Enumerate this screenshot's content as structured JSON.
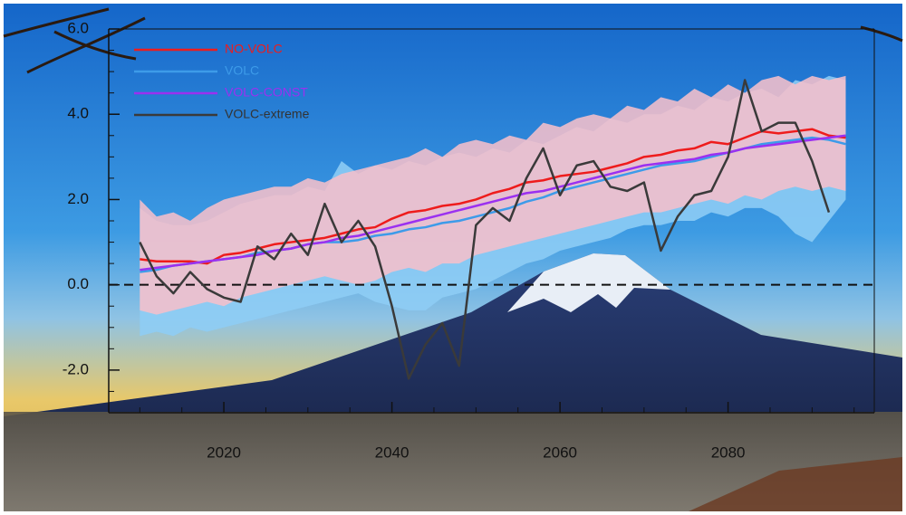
{
  "chart_data": {
    "type": "line",
    "x": [
      2010,
      2012,
      2014,
      2016,
      2018,
      2020,
      2022,
      2024,
      2026,
      2028,
      2030,
      2032,
      2034,
      2036,
      2038,
      2040,
      2042,
      2044,
      2046,
      2048,
      2050,
      2052,
      2054,
      2056,
      2058,
      2060,
      2062,
      2064,
      2066,
      2068,
      2070,
      2072,
      2074,
      2076,
      2078,
      2080,
      2082,
      2084,
      2086,
      2088,
      2090,
      2092,
      2094
    ],
    "series": [
      {
        "name": "NO-VOLC",
        "color": "#ee1c1c",
        "values": [
          0.6,
          0.55,
          0.55,
          0.55,
          0.5,
          0.7,
          0.75,
          0.85,
          0.95,
          1.0,
          1.05,
          1.1,
          1.2,
          1.3,
          1.35,
          1.55,
          1.7,
          1.75,
          1.85,
          1.9,
          2.0,
          2.15,
          2.25,
          2.4,
          2.45,
          2.55,
          2.6,
          2.65,
          2.75,
          2.85,
          3.0,
          3.05,
          3.15,
          3.2,
          3.35,
          3.3,
          3.45,
          3.6,
          3.55,
          3.6,
          3.65,
          3.5,
          3.45
        ]
      },
      {
        "name": "VOLC",
        "color": "#3d9be9",
        "values": [
          0.3,
          0.35,
          0.45,
          0.5,
          0.55,
          0.6,
          0.65,
          0.75,
          0.8,
          0.85,
          0.95,
          1.0,
          1.0,
          1.05,
          1.15,
          1.2,
          1.3,
          1.35,
          1.45,
          1.5,
          1.6,
          1.7,
          1.8,
          1.95,
          2.05,
          2.2,
          2.3,
          2.4,
          2.5,
          2.6,
          2.7,
          2.8,
          2.85,
          2.9,
          3.0,
          3.1,
          3.2,
          3.3,
          3.35,
          3.4,
          3.45,
          3.4,
          3.3
        ]
      },
      {
        "name": "VOLC-CONST",
        "color": "#9b30f0",
        "values": [
          0.35,
          0.4,
          0.45,
          0.5,
          0.55,
          0.6,
          0.65,
          0.7,
          0.8,
          0.85,
          0.95,
          1.0,
          1.1,
          1.15,
          1.25,
          1.35,
          1.45,
          1.55,
          1.65,
          1.75,
          1.85,
          1.95,
          2.05,
          2.15,
          2.2,
          2.3,
          2.4,
          2.5,
          2.6,
          2.7,
          2.8,
          2.85,
          2.9,
          2.95,
          3.05,
          3.1,
          3.2,
          3.25,
          3.3,
          3.35,
          3.4,
          3.45,
          3.5
        ]
      },
      {
        "name": "VOLC-extreme",
        "color": "#3a3a3a",
        "values": [
          1.0,
          0.2,
          -0.2,
          0.3,
          -0.1,
          -0.3,
          -0.4,
          0.9,
          0.6,
          1.2,
          0.7,
          1.9,
          1.0,
          1.5,
          0.9,
          -0.5,
          -2.2,
          -1.4,
          -0.9,
          -1.9,
          1.4,
          1.8,
          1.5,
          2.5,
          3.2,
          2.1,
          2.8,
          2.9,
          2.3,
          2.2,
          2.4,
          0.8,
          1.6,
          2.1,
          2.2,
          3.0,
          4.8,
          3.6,
          3.8,
          3.8,
          2.9,
          1.7,
          null
        ]
      }
    ],
    "bands": [
      {
        "color": "#8ecdf5",
        "upper": [
          1.8,
          1.5,
          1.4,
          1.4,
          1.5,
          1.7,
          1.9,
          2.0,
          2.1,
          2.1,
          2.3,
          2.2,
          2.9,
          2.6,
          2.8,
          2.7,
          2.9,
          2.8,
          3.0,
          3.1,
          3.0,
          3.2,
          3.1,
          3.4,
          3.3,
          3.5,
          3.7,
          3.6,
          3.9,
          3.8,
          4.0,
          4.0,
          4.2,
          4.1,
          4.4,
          4.3,
          4.5,
          4.6,
          4.4,
          4.8,
          4.7,
          4.9,
          4.8
        ],
        "lower": [
          -1.2,
          -1.1,
          -1.2,
          -1.0,
          -1.1,
          -1.0,
          -0.9,
          -0.8,
          -0.7,
          -0.6,
          -0.5,
          -0.4,
          -0.3,
          -0.2,
          -0.4,
          -0.5,
          -0.6,
          -0.6,
          -0.3,
          -0.2,
          -0.1,
          0.1,
          0.3,
          0.5,
          0.6,
          0.8,
          0.9,
          1.0,
          1.1,
          1.3,
          1.4,
          1.4,
          1.5,
          1.5,
          1.7,
          1.6,
          1.8,
          1.8,
          1.6,
          1.2,
          1.0,
          1.5,
          2.0
        ]
      },
      {
        "color": "#f5bfcb",
        "upper": [
          2.0,
          1.6,
          1.7,
          1.5,
          1.8,
          2.0,
          2.1,
          2.2,
          2.3,
          2.3,
          2.5,
          2.4,
          2.6,
          2.7,
          2.8,
          2.9,
          3.0,
          3.2,
          3.0,
          3.3,
          3.4,
          3.3,
          3.5,
          3.4,
          3.8,
          3.7,
          3.9,
          4.0,
          3.9,
          4.2,
          4.1,
          4.4,
          4.3,
          4.6,
          4.4,
          4.7,
          4.5,
          4.8,
          4.9,
          4.7,
          4.9,
          4.8,
          4.9
        ],
        "lower": [
          -0.6,
          -0.7,
          -0.6,
          -0.5,
          -0.4,
          -0.5,
          -0.3,
          -0.2,
          -0.1,
          0.0,
          0.1,
          0.2,
          0.1,
          0.0,
          0.1,
          0.3,
          0.4,
          0.3,
          0.5,
          0.5,
          0.7,
          0.8,
          0.9,
          1.0,
          1.1,
          1.2,
          1.3,
          1.4,
          1.5,
          1.6,
          1.7,
          1.7,
          1.8,
          1.9,
          2.0,
          1.9,
          2.1,
          2.0,
          2.2,
          2.3,
          2.2,
          2.3,
          2.2
        ]
      }
    ],
    "xlim": [
      2006.3,
      2097.4
    ],
    "ylim": [
      -3,
      6
    ],
    "xticks": [
      2020,
      2040,
      2060,
      2080
    ],
    "xminorticks": [
      2010,
      2015,
      2025,
      2030,
      2035,
      2045,
      2050,
      2055,
      2065,
      2070,
      2075,
      2085,
      2090,
      2095
    ],
    "yticks": [
      {
        "value": 6,
        "label": "6.0"
      },
      {
        "value": 4,
        "label": "4.0"
      },
      {
        "value": 2,
        "label": "2.0"
      },
      {
        "value": 0,
        "label": "0.0"
      },
      {
        "value": -2,
        "label": "-2.0"
      }
    ],
    "yminorticks": [
      5.5,
      5,
      4.5,
      3.5,
      3,
      2.5,
      1.5,
      1,
      0.5,
      -0.5,
      -1,
      -1.5,
      -2.5
    ],
    "hline": 0,
    "legend": "upper left"
  }
}
